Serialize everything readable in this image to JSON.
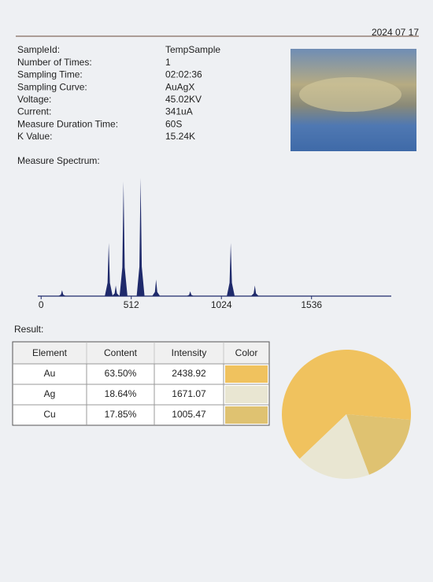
{
  "header": {
    "date": "2024 07 17"
  },
  "fields": {
    "labels": [
      "SampleId:",
      "Number of Times:",
      "Sampling Time:",
      "Sampling Curve:",
      "Voltage:",
      "Current:",
      "Measure Duration Time:",
      "K Value:"
    ],
    "values": [
      "TempSample",
      "1",
      "02:02:36",
      "AuAgX",
      "45.02KV",
      "341uA",
      "60S",
      "15.24K"
    ]
  },
  "spectrum": {
    "type": "area",
    "title": "Measure Spectrum:",
    "color": "#1f2a6b",
    "xlim": [
      -10,
      1980
    ],
    "ylim": [
      0,
      100
    ],
    "xticks": [
      0,
      512,
      1024,
      1536
    ],
    "x": [
      119,
      384,
      424,
      468,
      565,
      653,
      847,
      1077,
      1214
    ],
    "values": [
      5,
      45,
      9,
      97,
      100,
      14,
      4,
      45,
      9
    ]
  },
  "result": {
    "title": "Result:",
    "columns": [
      "Element",
      "Content",
      "Intensity",
      "Color"
    ],
    "elements": [
      "Au",
      "Ag",
      "Cu"
    ],
    "content": [
      63.5,
      18.64,
      17.85
    ],
    "content_labels": [
      "63.50%",
      "18.64%",
      "17.85%"
    ],
    "intensity": [
      2438.92,
      1671.07,
      1005.47
    ],
    "colors": [
      "#f0c25e",
      "#e9e6d2",
      "#dfc271"
    ]
  }
}
